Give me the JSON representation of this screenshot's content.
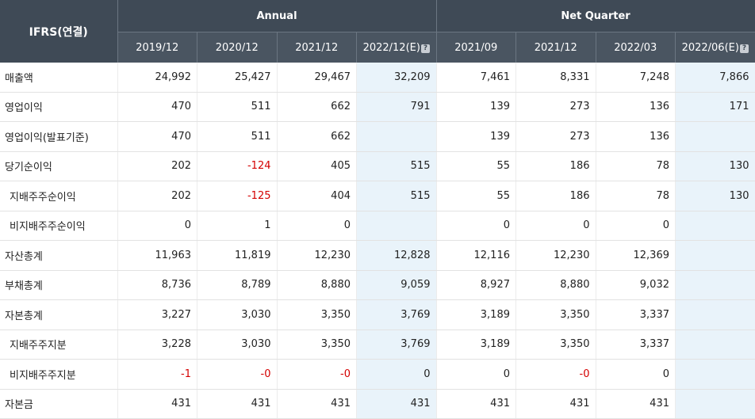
{
  "table": {
    "corner_label": "IFRS(연결)",
    "groups": [
      {
        "label": "Annual"
      },
      {
        "label": "Net Quarter"
      }
    ],
    "columns": [
      "2019/12",
      "2020/12",
      "2021/12",
      "2022/12(E)",
      "2021/09",
      "2021/12",
      "2022/03",
      "2022/06(E)"
    ],
    "estimate_columns": [
      3,
      7
    ],
    "help_icon_glyph": "?",
    "rows": [
      {
        "label": "매출액",
        "indent": false,
        "values": [
          "24,992",
          "25,427",
          "29,467",
          "32,209",
          "7,461",
          "8,331",
          "7,248",
          "7,866"
        ]
      },
      {
        "label": "영업이익",
        "indent": false,
        "values": [
          "470",
          "511",
          "662",
          "791",
          "139",
          "273",
          "136",
          "171"
        ]
      },
      {
        "label": "영업이익(발표기준)",
        "indent": false,
        "values": [
          "470",
          "511",
          "662",
          "",
          "139",
          "273",
          "136",
          ""
        ]
      },
      {
        "label": "당기순이익",
        "indent": false,
        "values": [
          "202",
          "-124",
          "405",
          "515",
          "55",
          "186",
          "78",
          "130"
        ]
      },
      {
        "label": "지배주주순이익",
        "indent": true,
        "values": [
          "202",
          "-125",
          "404",
          "515",
          "55",
          "186",
          "78",
          "130"
        ]
      },
      {
        "label": "비지배주주순이익",
        "indent": true,
        "values": [
          "0",
          "1",
          "0",
          "",
          "0",
          "0",
          "0",
          ""
        ]
      },
      {
        "label": "자산총계",
        "indent": false,
        "values": [
          "11,963",
          "11,819",
          "12,230",
          "12,828",
          "12,116",
          "12,230",
          "12,369",
          ""
        ]
      },
      {
        "label": "부채총계",
        "indent": false,
        "values": [
          "8,736",
          "8,789",
          "8,880",
          "9,059",
          "8,927",
          "8,880",
          "9,032",
          ""
        ]
      },
      {
        "label": "자본총계",
        "indent": false,
        "values": [
          "3,227",
          "3,030",
          "3,350",
          "3,769",
          "3,189",
          "3,350",
          "3,337",
          ""
        ]
      },
      {
        "label": "지배주주지분",
        "indent": true,
        "values": [
          "3,228",
          "3,030",
          "3,350",
          "3,769",
          "3,189",
          "3,350",
          "3,337",
          ""
        ]
      },
      {
        "label": "비지배주주지분",
        "indent": true,
        "values": [
          "-1",
          "-0",
          "-0",
          "0",
          "0",
          "-0",
          "0",
          ""
        ]
      },
      {
        "label": "자본금",
        "indent": false,
        "values": [
          "431",
          "431",
          "431",
          "431",
          "431",
          "431",
          "431",
          ""
        ]
      }
    ],
    "colors": {
      "header_bg": "#3f4a56",
      "subheader_bg": "#4a5561",
      "estimate_bg": "#e9f3fa",
      "negative_text": "#d40000"
    }
  }
}
